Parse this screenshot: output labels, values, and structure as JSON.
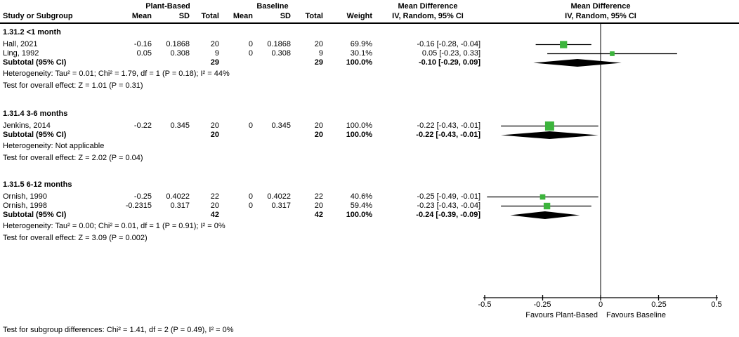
{
  "header": {
    "group_plant": "Plant-Based",
    "group_baseline": "Baseline",
    "col_study": "Study or Subgroup",
    "col_mean": "Mean",
    "col_sd": "SD",
    "col_total": "Total",
    "col_weight": "Weight",
    "md_title": "Mean Difference",
    "md_method": "IV, Random, 95% CI",
    "plot_title": "Mean Difference",
    "plot_method": "IV, Random, 95% CI"
  },
  "colors": {
    "square": "#3cb43c",
    "diamond": "#000000",
    "axis": "#000000"
  },
  "chart_data": {
    "type": "forest",
    "effect_label": "Mean Difference (IV, Random, 95% CI)",
    "axis": {
      "min": -0.5,
      "max": 0.5,
      "ticks": [
        -0.5,
        -0.25,
        0,
        0.25,
        0.5
      ],
      "tick_labels": [
        "-0.5",
        "-0.25",
        "0",
        "0.25",
        "0.5"
      ],
      "favours_left": "Favours Plant-Based",
      "favours_right": "Favours Baseline"
    },
    "subgroups": [
      {
        "label": "1.31.2 <1 month",
        "studies": [
          {
            "name": "Hall, 2021",
            "mean1": "-0.16",
            "sd1": "0.1868",
            "total1": "20",
            "mean2": "0",
            "sd2": "0.1868",
            "total2": "20",
            "weight": "69.9%",
            "ci_label": "-0.16 [-0.28, -0.04]",
            "md": -0.16,
            "lo": -0.28,
            "hi": -0.04,
            "weight_pct": 69.9
          },
          {
            "name": "Ling, 1992",
            "mean1": "0.05",
            "sd1": "0.308",
            "total1": "9",
            "mean2": "0",
            "sd2": "0.308",
            "total2": "9",
            "weight": "30.1%",
            "ci_label": "0.05 [-0.23, 0.33]",
            "md": 0.05,
            "lo": -0.23,
            "hi": 0.33,
            "weight_pct": 30.1
          }
        ],
        "subtotal": {
          "label": "Subtotal (95% CI)",
          "total1": "29",
          "total2": "29",
          "weight": "100.0%",
          "ci_label": "-0.10 [-0.29, 0.09]",
          "md": -0.1,
          "lo": -0.29,
          "hi": 0.09
        },
        "heterogeneity": "Heterogeneity: Tau² = 0.01; Chi² = 1.79, df = 1 (P = 0.18); I² = 44%",
        "overall_effect": "Test for overall effect: Z = 1.01 (P = 0.31)"
      },
      {
        "label": "1.31.4 3-6 months",
        "studies": [
          {
            "name": "Jenkins, 2014",
            "mean1": "-0.22",
            "sd1": "0.345",
            "total1": "20",
            "mean2": "0",
            "sd2": "0.345",
            "total2": "20",
            "weight": "100.0%",
            "ci_label": "-0.22 [-0.43, -0.01]",
            "md": -0.22,
            "lo": -0.43,
            "hi": -0.01,
            "weight_pct": 100.0
          }
        ],
        "subtotal": {
          "label": "Subtotal (95% CI)",
          "total1": "20",
          "total2": "20",
          "weight": "100.0%",
          "ci_label": "-0.22 [-0.43, -0.01]",
          "md": -0.22,
          "lo": -0.43,
          "hi": -0.01
        },
        "heterogeneity": "Heterogeneity: Not applicable",
        "overall_effect": "Test for overall effect: Z = 2.02 (P = 0.04)"
      },
      {
        "label": "1.31.5 6-12 months",
        "studies": [
          {
            "name": "Ornish, 1990",
            "mean1": "-0.25",
            "sd1": "0.4022",
            "total1": "22",
            "mean2": "0",
            "sd2": "0.4022",
            "total2": "22",
            "weight": "40.6%",
            "ci_label": "-0.25 [-0.49, -0.01]",
            "md": -0.25,
            "lo": -0.49,
            "hi": -0.01,
            "weight_pct": 40.6
          },
          {
            "name": "Ornish, 1998",
            "mean1": "-0.2315",
            "sd1": "0.317",
            "total1": "20",
            "mean2": "0",
            "sd2": "0.317",
            "total2": "20",
            "weight": "59.4%",
            "ci_label": "-0.23 [-0.43, -0.04]",
            "md": -0.2315,
            "lo": -0.43,
            "hi": -0.04,
            "weight_pct": 59.4
          }
        ],
        "subtotal": {
          "label": "Subtotal (95% CI)",
          "total1": "42",
          "total2": "42",
          "weight": "100.0%",
          "ci_label": "-0.24 [-0.39, -0.09]",
          "md": -0.24,
          "lo": -0.39,
          "hi": -0.09
        },
        "heterogeneity": "Heterogeneity: Tau² = 0.00; Chi² = 0.01, df = 1 (P = 0.91); I² = 0%",
        "overall_effect": "Test for overall effect: Z = 3.09 (P = 0.002)"
      }
    ],
    "subgroup_differences": "Test for subgroup differences: Chi² = 1.41, df = 2 (P = 0.49), I² = 0%"
  }
}
